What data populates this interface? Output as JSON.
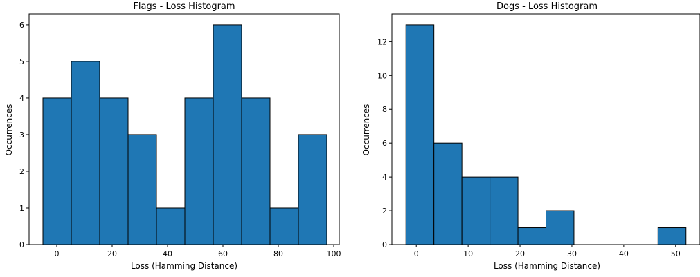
{
  "chart_data": [
    {
      "type": "bar",
      "title": "Flags - Loss Histogram",
      "xlabel": "Loss (Hamming Distance)",
      "ylabel": "Occurrences",
      "bin_edges": [
        -5,
        5.25,
        15.5,
        25.75,
        36,
        46.25,
        56.5,
        66.75,
        77,
        87.25,
        97.5
      ],
      "values": [
        4,
        5,
        4,
        3,
        1,
        4,
        6,
        4,
        1,
        3
      ],
      "xlim": [
        -10,
        102
      ],
      "ylim": [
        0,
        6.3
      ],
      "xticks": [
        0,
        20,
        40,
        60,
        80,
        100
      ],
      "yticks": [
        0,
        1,
        2,
        3,
        4,
        5,
        6
      ],
      "bar_color": "#1f77b4",
      "edge_color": "#000000",
      "grid": false
    },
    {
      "type": "bar",
      "title": "Dogs - Loss Histogram",
      "xlabel": "Loss (Hamming Distance)",
      "ylabel": "Occurrences",
      "bin_edges": [
        -2,
        3.4,
        8.8,
        14.2,
        19.6,
        25,
        30.4,
        35.8,
        41.2,
        46.6,
        52
      ],
      "values": [
        13,
        6,
        4,
        4,
        1,
        2,
        0,
        0,
        0,
        1
      ],
      "xlim": [
        -4.7,
        54.7
      ],
      "ylim": [
        0,
        13.65
      ],
      "xticks": [
        0,
        10,
        20,
        30,
        40,
        50
      ],
      "yticks": [
        0,
        2,
        4,
        6,
        8,
        10,
        12
      ],
      "bar_color": "#1f77b4",
      "edge_color": "#000000",
      "grid": false
    }
  ]
}
